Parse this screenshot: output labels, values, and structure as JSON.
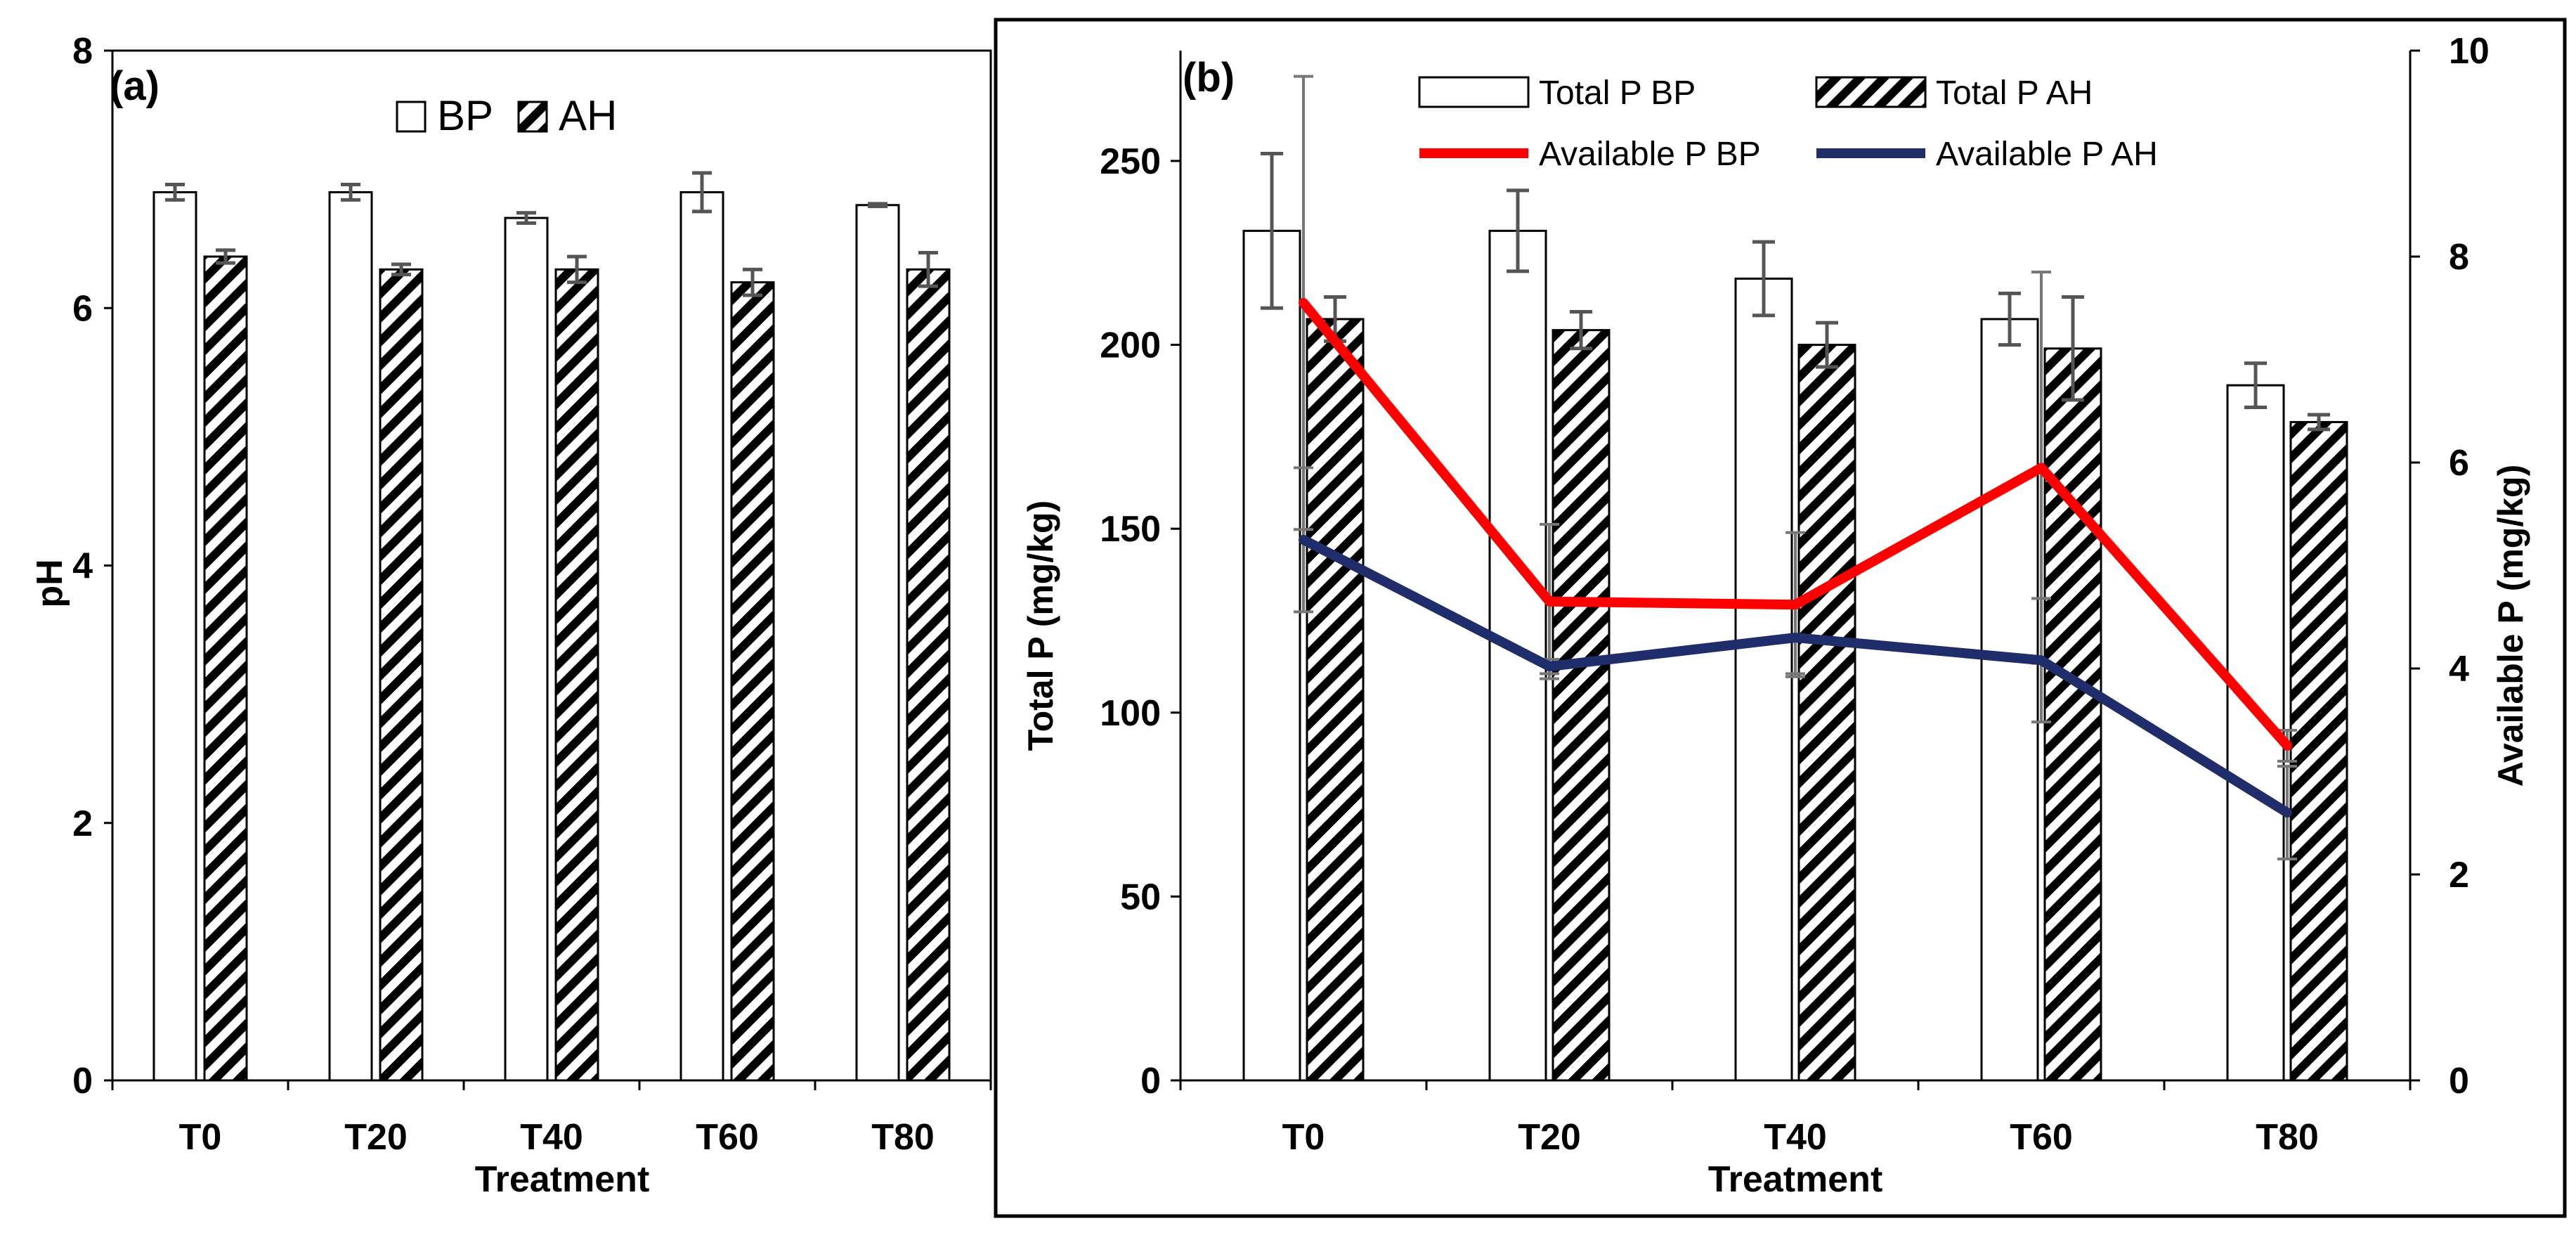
{
  "chart_data": [
    {
      "panel_label": "(a)",
      "type": "bar",
      "categories": [
        "T0",
        "T20",
        "T40",
        "T60",
        "T80"
      ],
      "xlabel": "Treatment",
      "ylabel": "pH",
      "ylim": [
        0,
        8
      ],
      "yticks": [
        0,
        2,
        4,
        6,
        8
      ],
      "legend": [
        "BP",
        "AH"
      ],
      "legend_position": "top-center",
      "series": [
        {
          "name": "BP",
          "style": "white",
          "values": [
            6.9,
            6.9,
            6.7,
            6.9,
            6.8
          ],
          "errors": [
            0.06,
            0.06,
            0.04,
            0.15,
            0.01
          ]
        },
        {
          "name": "AH",
          "style": "hatched",
          "values": [
            6.4,
            6.3,
            6.3,
            6.2,
            6.3
          ],
          "errors": [
            0.05,
            0.04,
            0.1,
            0.1,
            0.13
          ]
        }
      ]
    },
    {
      "panel_label": "(b)",
      "type": "bar",
      "categories": [
        "T0",
        "T20",
        "T40",
        "T60",
        "T80"
      ],
      "xlabel": "Treatment",
      "ylabel": "Total P (mg/kg)",
      "ylim": [
        0,
        280
      ],
      "yticks": [
        0,
        50,
        100,
        150,
        200,
        250
      ],
      "y2label": "Available P (mg/kg)",
      "y2lim": [
        0,
        10
      ],
      "y2ticks": [
        0,
        2,
        4,
        6,
        8,
        10
      ],
      "legend_position": "top",
      "series": [
        {
          "name": "Total P  BP",
          "kind": "bar",
          "style": "white",
          "axis": "left",
          "values": [
            231,
            231,
            218,
            207,
            189
          ],
          "errors": [
            21,
            11,
            10,
            7,
            6
          ]
        },
        {
          "name": "Total P  AH",
          "kind": "bar",
          "style": "hatched",
          "axis": "left",
          "values": [
            207,
            204,
            200,
            199,
            179
          ],
          "errors": [
            6,
            5,
            6,
            14,
            2
          ]
        },
        {
          "name": "Available P  BP",
          "kind": "line",
          "color": "#ff0000",
          "axis": "right",
          "values": [
            7.55,
            4.65,
            4.62,
            5.95,
            3.25
          ],
          "errors": [
            2.2,
            0.75,
            0.7,
            1.9,
            0.15
          ]
        },
        {
          "name": "Available P  AH",
          "kind": "line",
          "color": "#1f2d6b",
          "axis": "right",
          "values": [
            5.25,
            4.02,
            4.3,
            4.08,
            2.6
          ],
          "errors": [
            0.7,
            0.07,
            0.35,
            0.6,
            0.45
          ]
        }
      ]
    }
  ]
}
